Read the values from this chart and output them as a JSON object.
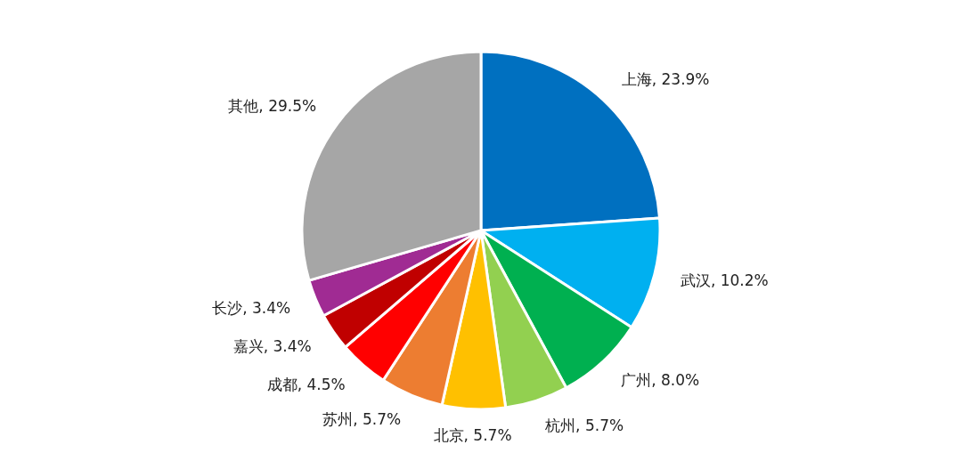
{
  "chart_data": {
    "type": "pie",
    "categories": [
      "上海",
      "武汉",
      "广州",
      "杭州",
      "北京",
      "苏州",
      "成都",
      "嘉兴",
      "长沙",
      "其他"
    ],
    "values": [
      23.9,
      10.2,
      8.0,
      5.7,
      5.7,
      5.7,
      4.5,
      3.4,
      3.4,
      29.5
    ],
    "value_labels": [
      "23.9%",
      "10.2%",
      "8.0%",
      "5.7%",
      "5.7%",
      "5.7%",
      "4.5%",
      "3.4%",
      "3.4%",
      "29.5%"
    ],
    "colors": [
      "#0070c0",
      "#00b0f0",
      "#00b050",
      "#92d050",
      "#ffc000",
      "#ed7d31",
      "#ff0000",
      "#c00000",
      "#a02b93",
      "#a6a6a6"
    ],
    "legend": false
  }
}
